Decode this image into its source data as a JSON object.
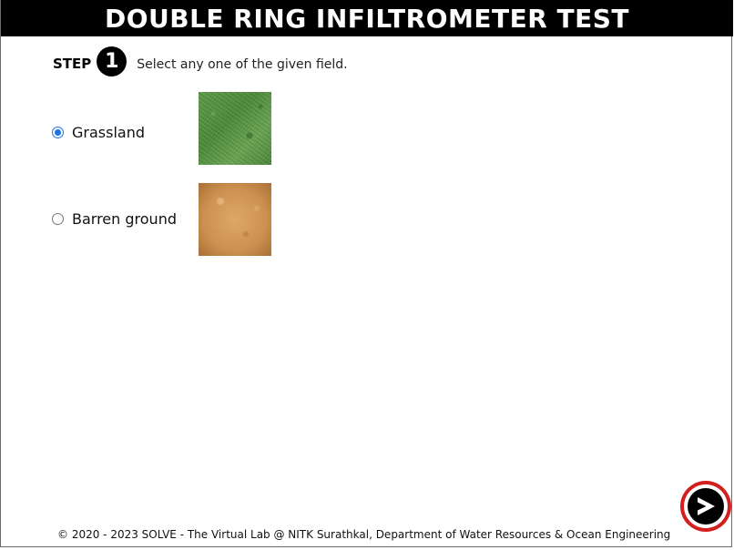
{
  "header": {
    "title": "DOUBLE RING INFILTROMETER TEST"
  },
  "step": {
    "label": "STEP",
    "number": "1",
    "instruction": "Select any one of the given field."
  },
  "options": [
    {
      "label": "Grassland",
      "selected": true,
      "image_icon": "grass-texture-image"
    },
    {
      "label": "Barren ground",
      "selected": false,
      "image_icon": "soil-texture-image"
    }
  ],
  "next_button": {
    "icon": "arrow-right-icon",
    "colors": {
      "ring": "#d41f1f",
      "core": "#000000"
    }
  },
  "footer": {
    "text": "© 2020 - 2023 SOLVE - The Virtual Lab @ NITK Surathkal, Department of Water Resources & Ocean Engineering"
  },
  "colors": {
    "header_bg": "#000000",
    "header_text": "#ffffff",
    "radio_accent": "#1a73e8"
  }
}
